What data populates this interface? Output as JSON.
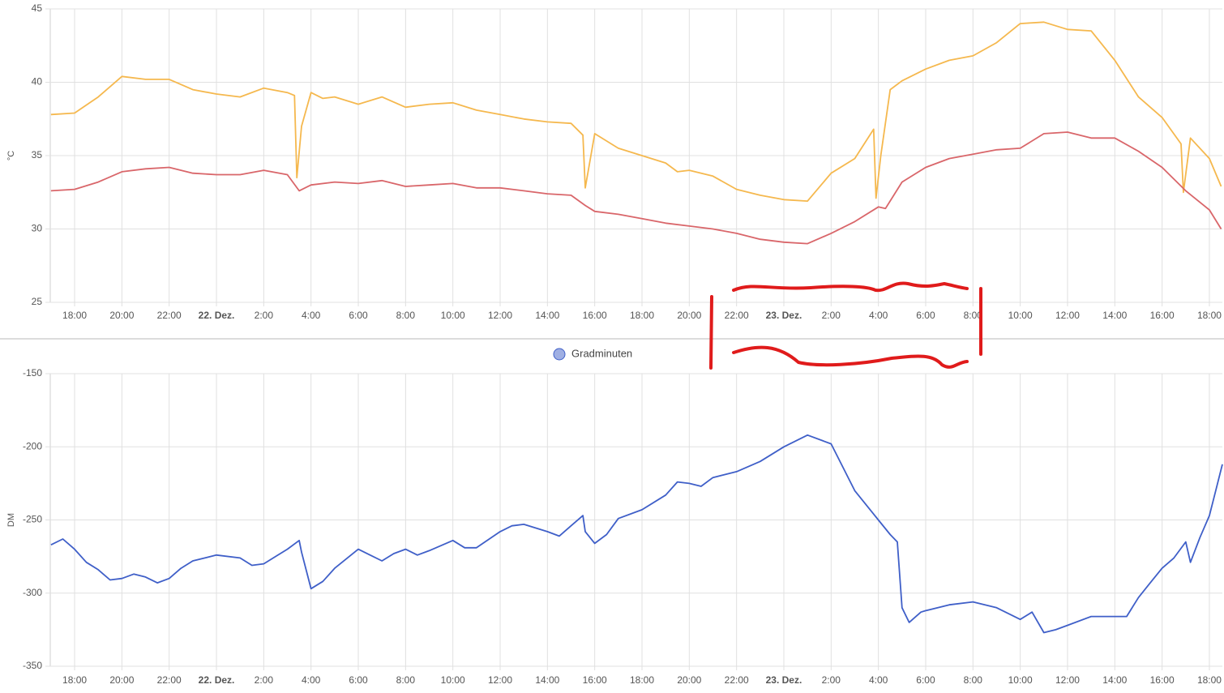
{
  "chart_data": [
    {
      "type": "line",
      "y_label": "°C",
      "grid": true,
      "xlim": [
        -7.03,
        42.55
      ],
      "ylim": [
        25,
        45
      ],
      "yticks": [
        25,
        30,
        35,
        40,
        45
      ],
      "xticks": [
        {
          "value": -6,
          "label": "18:00"
        },
        {
          "value": -4,
          "label": "20:00"
        },
        {
          "value": -2,
          "label": "22:00"
        },
        {
          "value": 0,
          "label": "22. Dez."
        },
        {
          "value": 2,
          "label": "2:00"
        },
        {
          "value": 4,
          "label": "4:00"
        },
        {
          "value": 6,
          "label": "6:00"
        },
        {
          "value": 8,
          "label": "8:00"
        },
        {
          "value": 10,
          "label": "10:00"
        },
        {
          "value": 12,
          "label": "12:00"
        },
        {
          "value": 14,
          "label": "14:00"
        },
        {
          "value": 16,
          "label": "16:00"
        },
        {
          "value": 18,
          "label": "18:00"
        },
        {
          "value": 20,
          "label": "20:00"
        },
        {
          "value": 22,
          "label": "22:00"
        },
        {
          "value": 24,
          "label": "23. Dez."
        },
        {
          "value": 26,
          "label": "2:00"
        },
        {
          "value": 28,
          "label": "4:00"
        },
        {
          "value": 30,
          "label": "6:00"
        },
        {
          "value": 32,
          "label": "8:00"
        },
        {
          "value": 34,
          "label": "10:00"
        },
        {
          "value": 36,
          "label": "12:00"
        },
        {
          "value": 38,
          "label": "14:00"
        },
        {
          "value": 40,
          "label": "16:00"
        },
        {
          "value": 42,
          "label": "18:00"
        }
      ],
      "series": [
        {
          "color": "#f5b84e",
          "x": [
            -7,
            -6,
            -5,
            -4,
            -3,
            -2,
            -1,
            0,
            1,
            2,
            3,
            3.3,
            3.4,
            3.6,
            4,
            4.5,
            5,
            6,
            7,
            8,
            9,
            10,
            11,
            12,
            13,
            14,
            15,
            15.5,
            15.6,
            16,
            17,
            18,
            19,
            19.5,
            20,
            21,
            22,
            23,
            24,
            25,
            26,
            27,
            27.8,
            27.9,
            28.1,
            28.5,
            29,
            30,
            31,
            32,
            33,
            34,
            35,
            36,
            37,
            38,
            39,
            40,
            40.8,
            40.9,
            41.2,
            42,
            42.5
          ],
          "values": [
            37.8,
            37.9,
            39.0,
            40.4,
            40.2,
            40.2,
            39.5,
            39.2,
            39.0,
            39.6,
            39.3,
            39.1,
            33.5,
            37.0,
            39.3,
            38.9,
            39.0,
            38.5,
            39.0,
            38.3,
            38.5,
            38.6,
            38.1,
            37.8,
            37.5,
            37.3,
            37.2,
            36.4,
            32.8,
            36.5,
            35.5,
            35.0,
            34.5,
            33.9,
            34.0,
            33.6,
            32.7,
            32.3,
            32.0,
            31.9,
            33.8,
            34.8,
            36.8,
            32.1,
            35.0,
            39.5,
            40.1,
            40.9,
            41.5,
            41.8,
            42.7,
            44.0,
            44.1,
            43.6,
            43.5,
            41.5,
            39.0,
            37.6,
            35.8,
            32.5,
            36.2,
            34.8,
            32.9
          ]
        },
        {
          "color": "#d9666a",
          "x": [
            -7,
            -6,
            -5,
            -4,
            -3,
            -2,
            -1,
            0,
            1,
            2,
            3,
            3.5,
            4,
            5,
            6,
            7,
            8,
            9,
            10,
            11,
            12,
            13,
            14,
            15,
            15.6,
            16,
            17,
            18,
            19,
            20,
            21,
            22,
            23,
            24,
            25,
            26,
            27,
            28,
            28.3,
            29,
            30,
            31,
            32,
            33,
            34,
            35,
            36,
            37,
            38,
            39,
            40,
            41,
            42,
            42.5
          ],
          "values": [
            32.6,
            32.7,
            33.2,
            33.9,
            34.1,
            34.2,
            33.8,
            33.7,
            33.7,
            34.0,
            33.7,
            32.6,
            33.0,
            33.2,
            33.1,
            33.3,
            32.9,
            33.0,
            33.1,
            32.8,
            32.8,
            32.6,
            32.4,
            32.3,
            31.6,
            31.2,
            31.0,
            30.7,
            30.4,
            30.2,
            30.0,
            29.7,
            29.3,
            29.1,
            29.0,
            29.7,
            30.5,
            31.5,
            31.4,
            33.2,
            34.2,
            34.8,
            35.1,
            35.4,
            35.5,
            36.5,
            36.6,
            36.2,
            36.2,
            35.3,
            34.2,
            32.6,
            31.3,
            30.0
          ]
        }
      ]
    },
    {
      "type": "line",
      "y_label": "DM",
      "grid": true,
      "legend": "top",
      "xlim": [
        -7.03,
        42.55
      ],
      "ylim": [
        -350,
        -150
      ],
      "yticks": [
        -150,
        -200,
        -250,
        -300,
        -350
      ],
      "xticks": [
        {
          "value": -6,
          "label": "18:00"
        },
        {
          "value": -4,
          "label": "20:00"
        },
        {
          "value": -2,
          "label": "22:00"
        },
        {
          "value": 0,
          "label": "22. Dez."
        },
        {
          "value": 2,
          "label": "2:00"
        },
        {
          "value": 4,
          "label": "4:00"
        },
        {
          "value": 6,
          "label": "6:00"
        },
        {
          "value": 8,
          "label": "8:00"
        },
        {
          "value": 10,
          "label": "10:00"
        },
        {
          "value": 12,
          "label": "12:00"
        },
        {
          "value": 14,
          "label": "14:00"
        },
        {
          "value": 16,
          "label": "16:00"
        },
        {
          "value": 18,
          "label": "18:00"
        },
        {
          "value": 20,
          "label": "20:00"
        },
        {
          "value": 22,
          "label": "22:00"
        },
        {
          "value": 24,
          "label": "23. Dez."
        },
        {
          "value": 26,
          "label": "2:00"
        },
        {
          "value": 28,
          "label": "4:00"
        },
        {
          "value": 30,
          "label": "6:00"
        },
        {
          "value": 32,
          "label": "8:00"
        },
        {
          "value": 34,
          "label": "10:00"
        },
        {
          "value": 36,
          "label": "12:00"
        },
        {
          "value": 38,
          "label": "14:00"
        },
        {
          "value": 40,
          "label": "16:00"
        },
        {
          "value": 42,
          "label": "18:00"
        }
      ],
      "series": [
        {
          "name": "Gradminuten",
          "color": "#3f5fc8",
          "x": [
            -7,
            -6.5,
            -6,
            -5.5,
            -5,
            -4.5,
            -4,
            -3.5,
            -3,
            -2.5,
            -2,
            -1.5,
            -1,
            0,
            1,
            1.5,
            2,
            2.5,
            3,
            3.5,
            3.6,
            4,
            4.5,
            5,
            6,
            6.5,
            7,
            7.5,
            8,
            8.5,
            9,
            10,
            10.5,
            11,
            12,
            12.5,
            13,
            14,
            14.5,
            15,
            15.5,
            15.6,
            16,
            16.5,
            17,
            18,
            19,
            19.5,
            20,
            20.5,
            21,
            22,
            23,
            24,
            25,
            26,
            26.5,
            27,
            28,
            28.5,
            28.8,
            29,
            29.3,
            29.8,
            30,
            31,
            32,
            33,
            34,
            34.5,
            35,
            35.5,
            36,
            37,
            38,
            38.5,
            39,
            39.5,
            40,
            40.5,
            41,
            41.2,
            41.6,
            42,
            42.3,
            42.55
          ],
          "values": [
            -267,
            -263,
            -270,
            -279,
            -284,
            -291,
            -290,
            -287,
            -289,
            -293,
            -290,
            -283,
            -278,
            -274,
            -276,
            -281,
            -280,
            -275,
            -270,
            -264,
            -272,
            -297,
            -292,
            -283,
            -270,
            -274,
            -278,
            -273,
            -270,
            -274,
            -271,
            -264,
            -269,
            -269,
            -258,
            -254,
            -253,
            -258,
            -261,
            -254,
            -247,
            -258,
            -266,
            -260,
            -249,
            -243,
            -233,
            -224,
            -225,
            -227,
            -221,
            -217,
            -210,
            -200,
            -192,
            -198,
            -214,
            -230,
            -250,
            -260,
            -265,
            -310,
            -320,
            -313,
            -312,
            -308,
            -306,
            -310,
            -318,
            -313,
            -327,
            -325,
            -322,
            -316,
            -316,
            -316,
            -303,
            -293,
            -283,
            -276,
            -265,
            -279,
            -262,
            -247,
            -228,
            -212
          ]
        }
      ]
    }
  ]
}
